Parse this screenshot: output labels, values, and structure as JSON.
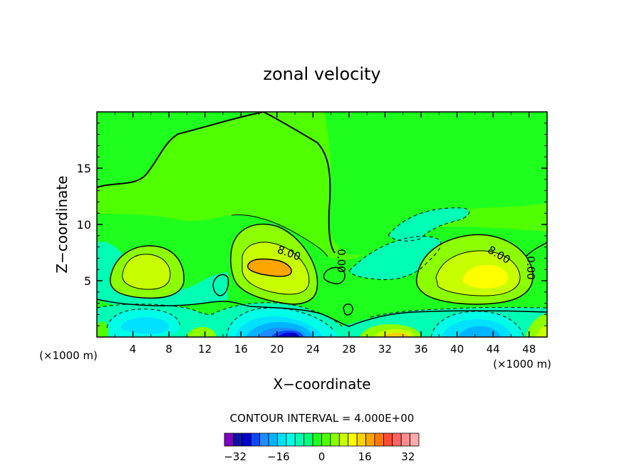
{
  "chart_data": {
    "type": "contour",
    "title": "zonal velocity",
    "xlabel": "X−coordinate",
    "ylabel": "Z−coordinate",
    "x_unit_left": "(×1000 m)",
    "x_unit_right": "(×1000 m)",
    "xlim": [
      0,
      50
    ],
    "ylim": [
      0,
      20
    ],
    "x_ticks": [
      4,
      8,
      12,
      16,
      20,
      24,
      28,
      32,
      36,
      40,
      44,
      48
    ],
    "y_ticks": [
      5,
      10,
      15
    ],
    "contour_interval_text": "CONTOUR INTERVAL = 4.000E+00",
    "contour_labels": [
      "8.00",
      "0.00",
      "8.00",
      "0.00"
    ],
    "colorbar": {
      "min": -36,
      "max": 36,
      "step": 4,
      "tick_values": [
        -32,
        -16,
        0,
        16,
        32
      ],
      "tick_labels": [
        "−32",
        "−16",
        "0",
        "16",
        "32"
      ],
      "colors": [
        "#7f00bf",
        "#1010a0",
        "#0000cd",
        "#0a46ff",
        "#1e8cff",
        "#00b4ff",
        "#00e1ff",
        "#00ffe6",
        "#00ffb4",
        "#00ff78",
        "#1eff1e",
        "#50ff00",
        "#8cff00",
        "#c8ff00",
        "#ffff00",
        "#ffd200",
        "#ffa500",
        "#ff7800",
        "#ff4b32",
        "#ff6464",
        "#ff8c8c",
        "#ffaaaa"
      ]
    }
  }
}
